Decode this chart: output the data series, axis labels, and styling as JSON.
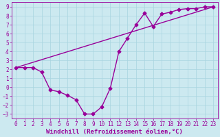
{
  "xlabel": "Windchill (Refroidissement éolien,°C)",
  "xlim": [
    -0.5,
    23.5
  ],
  "ylim": [
    -3.5,
    9.5
  ],
  "xticks": [
    0,
    1,
    2,
    3,
    4,
    5,
    6,
    7,
    8,
    9,
    10,
    11,
    12,
    13,
    14,
    15,
    16,
    17,
    18,
    19,
    20,
    21,
    22,
    23
  ],
  "yticks": [
    -3,
    -2,
    -1,
    0,
    1,
    2,
    3,
    4,
    5,
    6,
    7,
    8,
    9
  ],
  "background_color": "#cce9f0",
  "grid_color": "#a8d4e0",
  "line_color": "#990099",
  "line1_x": [
    0,
    1,
    2,
    3,
    4,
    5,
    6,
    7,
    8,
    9,
    10,
    11,
    12,
    13,
    14,
    15,
    16,
    17,
    18,
    19,
    20,
    21,
    22,
    23
  ],
  "line1_y": [
    2.2,
    2.2,
    2.2,
    1.7,
    -0.3,
    -0.5,
    -0.9,
    -1.4,
    -3.0,
    -3.0,
    -2.2,
    -0.1,
    4.0,
    5.5,
    7.0,
    8.3,
    6.8,
    8.2,
    8.4,
    8.7,
    8.8,
    8.8,
    9.0,
    9.0
  ],
  "line2_x": [
    0,
    23
  ],
  "line2_y": [
    2.2,
    9.0
  ],
  "marker": "D",
  "markersize": 2.5,
  "linewidth": 1.0,
  "tick_fontsize": 5.5,
  "label_fontsize": 6.5
}
